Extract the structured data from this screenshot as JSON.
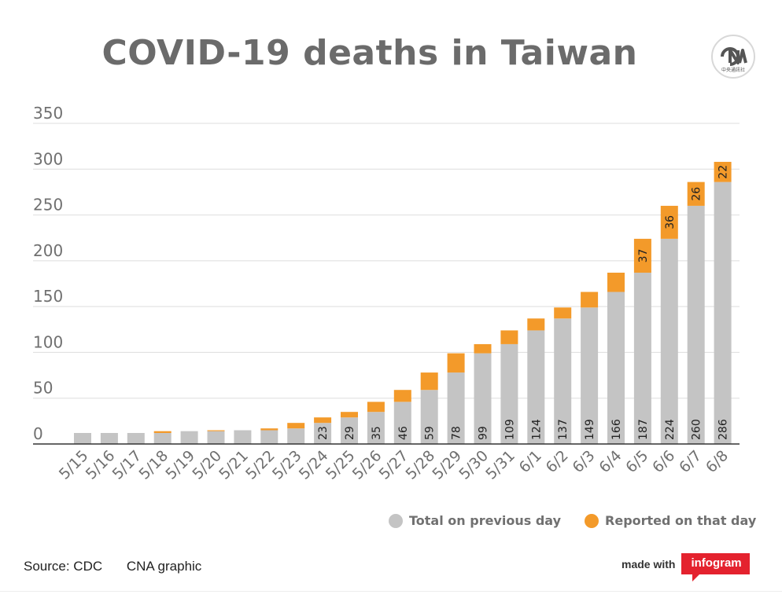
{
  "header": {
    "title": "COVID-19 deaths in Taiwan",
    "logo_text": "中央通訊社",
    "logo_icon": "cna-logo-icon"
  },
  "legend": {
    "items": [
      {
        "label": "Total on previous day",
        "color": "#c4c4c4"
      },
      {
        "label": "Reported on that day",
        "color": "#f39a2a"
      }
    ]
  },
  "footer": {
    "source": "Source: CDC",
    "credit": "CNA graphic",
    "made_with": "made with",
    "brand": "infogram"
  },
  "colors": {
    "previous": "#c4c4c4",
    "reported": "#f39a2a",
    "axis_text": "#707070",
    "grid": "#dddddd",
    "brand": "#e4222e"
  },
  "chart_data": {
    "type": "bar",
    "stacked": true,
    "title": "COVID-19 deaths in Taiwan",
    "xlabel": "",
    "ylabel": "",
    "ylim": [
      0,
      350
    ],
    "yticks": [
      0,
      50,
      100,
      150,
      200,
      250,
      300,
      350
    ],
    "grid": true,
    "legend_position": "bottom-right",
    "categories": [
      "5/15",
      "5/16",
      "5/17",
      "5/18",
      "5/19",
      "5/20",
      "5/21",
      "5/22",
      "5/23",
      "5/24",
      "5/25",
      "5/26",
      "5/27",
      "5/28",
      "5/29",
      "5/30",
      "5/31",
      "6/1",
      "6/2",
      "6/3",
      "6/4",
      "6/5",
      "6/6",
      "6/7",
      "6/8"
    ],
    "series": [
      {
        "name": "Total on previous day",
        "values": [
          12,
          12,
          12,
          12,
          14,
          14,
          15,
          15,
          17,
          23,
          29,
          35,
          46,
          59,
          78,
          99,
          109,
          124,
          137,
          149,
          166,
          187,
          224,
          260,
          286
        ]
      },
      {
        "name": "Reported on that day",
        "values": [
          0,
          0,
          0,
          2,
          0,
          1,
          0,
          2,
          6,
          6,
          6,
          11,
          13,
          19,
          21,
          10,
          15,
          13,
          12,
          17,
          21,
          37,
          36,
          26,
          22
        ]
      }
    ],
    "bar_labels_previous": [
      "",
      "",
      "",
      "",
      "",
      "",
      "",
      "",
      "",
      "23",
      "29",
      "35",
      "46",
      "59",
      "78",
      "99",
      "109",
      "124",
      "137",
      "149",
      "166",
      "187",
      "224",
      "260",
      "286"
    ],
    "bar_labels_reported": [
      "",
      "",
      "",
      "",
      "",
      "",
      "",
      "",
      "",
      "",
      "",
      "",
      "",
      "",
      "",
      "",
      "",
      "",
      "",
      "",
      "",
      "37",
      "36",
      "26",
      "22"
    ]
  }
}
